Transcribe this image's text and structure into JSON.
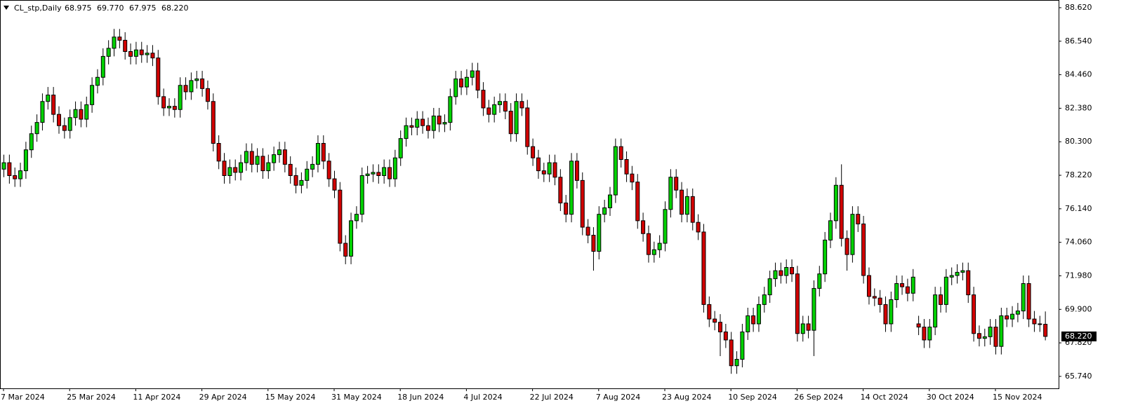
{
  "chart_data": {
    "type": "candlestick",
    "symbol": "CL_stp,Daily",
    "ohlc_labels": [
      "68.975",
      "69.770",
      "67.975",
      "68.220"
    ],
    "last_price_label": "68.220",
    "up_color": "#00d200",
    "down_color": "#d20000",
    "ylim": [
      65.04,
      89.01
    ],
    "yticks": [
      {
        "value": 88.62,
        "label": "88.620"
      },
      {
        "value": 86.54,
        "label": "86.540"
      },
      {
        "value": 84.46,
        "label": "84.460"
      },
      {
        "value": 82.38,
        "label": "82.380"
      },
      {
        "value": 80.3,
        "label": "80.300"
      },
      {
        "value": 78.22,
        "label": "78.220"
      },
      {
        "value": 76.14,
        "label": "76.140"
      },
      {
        "value": 74.06,
        "label": "74.060"
      },
      {
        "value": 71.98,
        "label": "71.980"
      },
      {
        "value": 69.9,
        "label": "69.900"
      },
      {
        "value": 67.82,
        "label": "67.820"
      },
      {
        "value": 65.74,
        "label": "65.740"
      }
    ],
    "grid": false,
    "categories": [
      "7 Mar 2024",
      null,
      null,
      null,
      null,
      null,
      null,
      null,
      null,
      null,
      null,
      null,
      "25 Mar 2024",
      null,
      null,
      null,
      null,
      null,
      null,
      null,
      null,
      null,
      null,
      null,
      "11 Apr 2024",
      null,
      null,
      null,
      null,
      null,
      null,
      null,
      null,
      null,
      null,
      null,
      "29 Apr 2024",
      null,
      null,
      null,
      null,
      null,
      null,
      null,
      null,
      null,
      null,
      null,
      "15 May 2024",
      null,
      null,
      null,
      null,
      null,
      null,
      null,
      null,
      null,
      null,
      null,
      "31 May 2024",
      null,
      null,
      null,
      null,
      null,
      null,
      null,
      null,
      null,
      null,
      null,
      "18 Jun 2024",
      null,
      null,
      null,
      null,
      null,
      null,
      null,
      null,
      null,
      null,
      null,
      "4 Jul 2024",
      null,
      null,
      null,
      null,
      null,
      null,
      null,
      null,
      null,
      null,
      null,
      "22 Jul 2024",
      null,
      null,
      null,
      null,
      null,
      null,
      null,
      null,
      null,
      null,
      null,
      "7 Aug 2024",
      null,
      null,
      null,
      null,
      null,
      null,
      null,
      null,
      null,
      null,
      null,
      "23 Aug 2024",
      null,
      null,
      null,
      null,
      null,
      null,
      null,
      null,
      null,
      null,
      null,
      "10 Sep 2024",
      null,
      null,
      null,
      null,
      null,
      null,
      null,
      null,
      null,
      null,
      null,
      "26 Sep 2024",
      null,
      null,
      null,
      null,
      null,
      null,
      null,
      null,
      null,
      null,
      null,
      "14 Oct 2024",
      null,
      null,
      null,
      null,
      null,
      null,
      null,
      null,
      null,
      null,
      null,
      "30 Oct 2024",
      null,
      null,
      null,
      null,
      null,
      null,
      null,
      null,
      null,
      null,
      null,
      "15 Nov 2024",
      null,
      null,
      null,
      null,
      null,
      null,
      null,
      null,
      null
    ],
    "open": [
      78.6,
      79.0,
      78.2,
      78.0,
      78.5,
      79.8,
      80.8,
      81.5,
      82.8,
      83.2,
      82.0,
      81.3,
      81.0,
      81.8,
      82.3,
      81.7,
      82.6,
      83.8,
      84.3,
      85.6,
      86.1,
      86.8,
      86.6,
      85.9,
      85.6,
      86.0,
      85.7,
      85.8,
      85.5,
      83.1,
      82.4,
      82.5,
      82.3,
      83.8,
      83.4,
      84.1,
      84.2,
      83.6,
      82.8,
      80.2,
      79.1,
      78.2,
      78.7,
      78.4,
      79.0,
      79.7,
      78.9,
      79.4,
      78.5,
      79.0,
      79.5,
      79.8,
      78.9,
      78.2,
      77.6,
      77.9,
      78.6,
      78.9,
      80.2,
      79.1,
      78.0,
      77.3,
      74.0,
      73.2,
      75.4,
      75.8,
      78.2,
      78.3,
      78.4,
      78.2,
      78.7,
      78.0,
      79.3,
      80.5,
      81.3,
      81.2,
      81.7,
      81.3,
      81.0,
      81.9,
      81.4,
      81.5,
      83.1,
      84.2,
      83.7,
      84.3,
      84.7,
      83.5,
      82.4,
      82.0,
      82.6,
      82.8,
      82.2,
      80.8,
      82.8,
      82.4,
      80.0,
      79.3,
      78.5,
      78.3,
      79.0,
      78.1,
      76.5,
      75.8,
      79.1,
      77.9,
      75.0,
      74.5,
      73.5,
      75.8,
      76.2,
      77.0,
      80.0,
      79.2,
      78.3,
      77.8,
      75.4,
      74.6,
      73.3,
      73.6,
      74.0,
      76.1,
      78.1,
      77.3,
      75.8,
      76.9,
      75.3,
      74.7,
      70.2,
      69.3,
      69.1,
      68.5,
      68.0,
      66.4,
      66.8,
      68.5,
      69.5,
      69.0,
      70.2,
      70.8,
      71.8,
      72.3,
      72.0,
      72.5,
      72.1,
      68.4,
      69.0,
      68.6,
      71.2,
      72.1,
      74.2,
      75.4,
      77.6,
      74.3,
      73.3,
      75.8,
      75.2,
      72.0,
      70.7,
      70.6,
      70.2,
      69.0,
      70.5,
      71.5,
      71.3,
      70.9,
      69.0,
      68.8,
      68.0,
      68.8,
      70.8,
      70.2,
      71.9,
      72.0,
      72.2,
      72.3,
      70.8,
      68.4,
      68.1,
      68.2,
      68.8,
      67.6,
      69.5,
      69.3,
      69.6,
      69.8,
      71.5,
      69.3,
      69.0,
      68.975
    ],
    "high": [
      79.5,
      79.5,
      78.7,
      79.0,
      80.3,
      81.3,
      82.0,
      83.3,
      83.7,
      83.7,
      82.5,
      81.8,
      82.3,
      82.8,
      82.8,
      83.1,
      84.3,
      84.8,
      86.1,
      86.6,
      87.3,
      87.3,
      87.1,
      86.4,
      86.5,
      86.5,
      86.3,
      86.3,
      86.0,
      83.6,
      83.0,
      83.0,
      84.3,
      84.3,
      84.6,
      84.7,
      84.7,
      84.1,
      83.3,
      80.7,
      79.6,
      79.2,
      79.2,
      79.5,
      80.2,
      80.2,
      79.9,
      79.9,
      79.5,
      80.0,
      80.3,
      80.3,
      79.4,
      78.7,
      78.4,
      79.1,
      79.4,
      80.7,
      80.7,
      79.6,
      78.5,
      77.8,
      74.5,
      75.9,
      76.3,
      78.7,
      78.8,
      78.9,
      78.9,
      79.2,
      79.2,
      79.8,
      81.0,
      81.8,
      81.8,
      82.2,
      82.2,
      81.8,
      82.4,
      82.4,
      82.0,
      83.6,
      84.7,
      84.7,
      84.8,
      85.2,
      85.2,
      84.0,
      82.9,
      83.1,
      83.3,
      83.3,
      82.7,
      83.3,
      83.3,
      82.9,
      80.5,
      79.8,
      79.0,
      79.5,
      79.5,
      78.6,
      77.0,
      79.6,
      79.6,
      78.4,
      75.5,
      75.0,
      76.3,
      76.7,
      77.5,
      80.5,
      80.5,
      79.7,
      78.8,
      78.3,
      75.9,
      75.1,
      74.1,
      74.5,
      76.6,
      78.6,
      78.6,
      77.8,
      77.4,
      77.4,
      75.8,
      75.2,
      70.7,
      69.8,
      69.6,
      69.0,
      68.5,
      67.3,
      69.0,
      70.0,
      70.0,
      70.7,
      71.3,
      72.3,
      72.8,
      72.8,
      73.0,
      73.0,
      72.6,
      69.5,
      69.5,
      71.7,
      72.6,
      74.7,
      75.9,
      78.1,
      78.9,
      74.8,
      76.3,
      76.3,
      75.7,
      72.5,
      71.2,
      71.1,
      70.7,
      71.0,
      72.0,
      72.0,
      71.8,
      72.4,
      69.5,
      69.3,
      69.3,
      71.3,
      71.3,
      72.4,
      72.5,
      72.7,
      72.8,
      72.8,
      71.3,
      68.9,
      68.7,
      69.3,
      69.3,
      70.0,
      70.0,
      70.1,
      70.3,
      72.0,
      72.0,
      69.8,
      69.5,
      69.77
    ],
    "low": [
      78.1,
      77.7,
      77.5,
      77.5,
      78.0,
      79.3,
      80.3,
      81.0,
      82.3,
      81.5,
      80.8,
      80.5,
      80.5,
      81.3,
      81.2,
      81.2,
      82.1,
      83.3,
      83.8,
      85.1,
      85.6,
      86.1,
      85.4,
      85.1,
      85.1,
      85.2,
      85.2,
      85.0,
      82.6,
      81.9,
      81.9,
      81.8,
      81.8,
      82.9,
      82.9,
      83.6,
      83.1,
      82.3,
      79.7,
      78.6,
      77.7,
      77.7,
      77.9,
      77.9,
      78.5,
      78.4,
      78.4,
      78.0,
      78.0,
      78.5,
      79.0,
      78.4,
      77.7,
      77.1,
      77.1,
      77.4,
      78.1,
      78.4,
      78.6,
      77.5,
      76.8,
      73.5,
      72.7,
      72.7,
      74.9,
      75.3,
      77.7,
      77.8,
      77.7,
      77.7,
      77.5,
      77.5,
      78.8,
      80.0,
      80.7,
      80.7,
      80.8,
      80.5,
      80.5,
      80.9,
      80.9,
      81.0,
      82.6,
      83.2,
      83.2,
      83.8,
      83.0,
      81.9,
      81.5,
      81.5,
      82.1,
      81.7,
      80.3,
      80.3,
      81.9,
      79.5,
      78.8,
      78.0,
      77.8,
      77.8,
      77.6,
      76.0,
      75.3,
      75.3,
      77.4,
      74.5,
      74.0,
      72.3,
      73.0,
      75.3,
      75.7,
      76.5,
      78.7,
      77.8,
      77.3,
      74.9,
      74.1,
      72.8,
      72.8,
      73.1,
      73.5,
      75.6,
      76.8,
      75.3,
      75.3,
      74.8,
      74.2,
      69.7,
      68.8,
      68.6,
      67.0,
      67.5,
      65.9,
      65.9,
      66.3,
      68.0,
      68.5,
      68.5,
      69.7,
      70.3,
      71.3,
      71.5,
      71.5,
      71.6,
      67.9,
      67.9,
      68.1,
      67.0,
      70.7,
      71.6,
      73.7,
      74.9,
      73.8,
      72.3,
      72.8,
      74.7,
      71.5,
      70.2,
      70.1,
      69.7,
      68.5,
      68.5,
      70.0,
      70.8,
      70.4,
      70.4,
      68.3,
      67.5,
      67.5,
      68.3,
      69.7,
      69.7,
      71.4,
      71.5,
      71.7,
      70.3,
      67.9,
      67.6,
      67.6,
      67.7,
      67.1,
      67.1,
      68.8,
      68.8,
      69.1,
      69.3,
      68.8,
      68.5,
      68.5,
      67.975
    ],
    "close": [
      79.0,
      78.2,
      78.0,
      78.5,
      79.8,
      80.8,
      81.5,
      82.8,
      83.2,
      82.0,
      81.3,
      81.0,
      81.8,
      82.3,
      81.7,
      82.6,
      83.8,
      84.3,
      85.6,
      86.1,
      86.8,
      86.6,
      85.9,
      85.6,
      86.0,
      85.7,
      85.8,
      85.5,
      83.1,
      82.4,
      82.5,
      82.3,
      83.8,
      83.4,
      84.1,
      84.2,
      83.6,
      82.8,
      80.2,
      79.1,
      78.2,
      78.7,
      78.4,
      79.0,
      79.7,
      78.9,
      79.4,
      78.5,
      79.0,
      79.5,
      79.8,
      78.9,
      78.2,
      77.6,
      77.9,
      78.6,
      78.9,
      80.2,
      79.1,
      78.0,
      77.3,
      74.0,
      73.2,
      75.4,
      75.8,
      78.2,
      78.3,
      78.4,
      78.2,
      78.7,
      78.0,
      79.3,
      80.5,
      81.3,
      81.2,
      81.7,
      81.3,
      81.0,
      81.9,
      81.4,
      81.5,
      83.1,
      84.2,
      83.7,
      84.3,
      84.7,
      83.5,
      82.4,
      82.0,
      82.6,
      82.8,
      82.2,
      80.8,
      82.8,
      82.4,
      80.0,
      79.3,
      78.5,
      78.3,
      79.0,
      78.1,
      76.5,
      75.8,
      79.1,
      77.9,
      75.0,
      74.5,
      73.5,
      75.8,
      76.2,
      77.0,
      80.0,
      79.2,
      78.3,
      77.8,
      75.4,
      74.6,
      73.3,
      73.6,
      74.0,
      76.1,
      78.1,
      77.3,
      75.8,
      76.9,
      75.3,
      74.7,
      70.2,
      69.3,
      69.1,
      68.5,
      68.0,
      66.4,
      66.8,
      68.5,
      69.5,
      69.0,
      70.2,
      70.8,
      71.8,
      72.3,
      72.0,
      72.5,
      72.1,
      68.4,
      69.0,
      68.6,
      71.2,
      72.1,
      74.2,
      75.4,
      77.6,
      74.3,
      73.3,
      75.8,
      75.2,
      72.0,
      70.7,
      70.6,
      70.2,
      69.0,
      70.5,
      71.5,
      71.3,
      70.9,
      71.9,
      68.8,
      68.0,
      68.8,
      70.8,
      70.2,
      71.9,
      72.0,
      72.2,
      72.3,
      70.8,
      68.4,
      68.1,
      68.2,
      68.8,
      67.6,
      69.5,
      69.3,
      69.6,
      69.8,
      71.5,
      69.3,
      69.0,
      69.0,
      68.22
    ]
  }
}
